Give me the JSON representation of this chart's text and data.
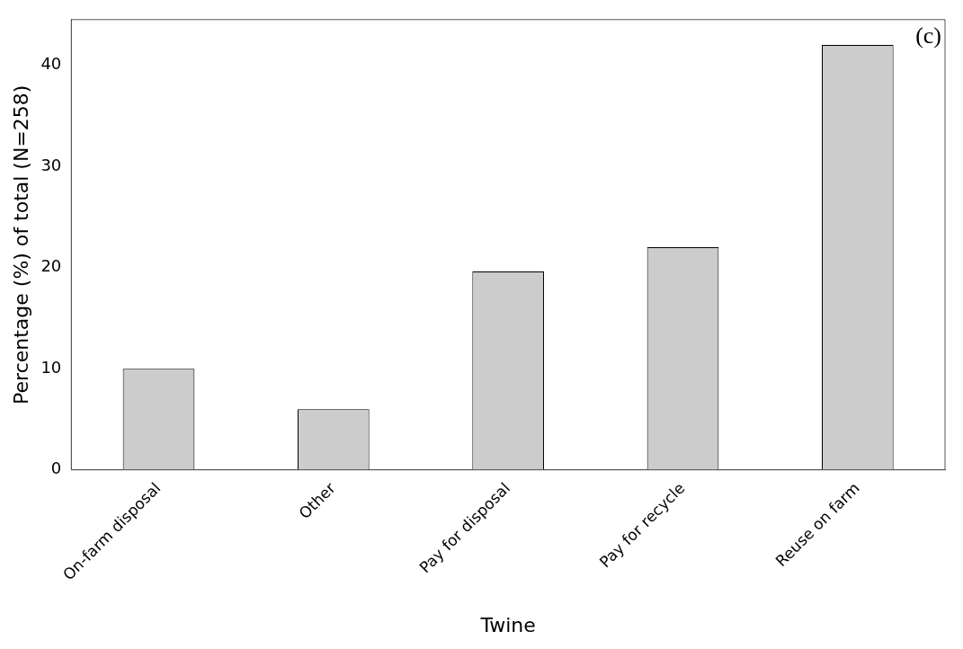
{
  "chart_data": {
    "type": "bar",
    "xlabel": "Twine",
    "ylabel": "Percentage (%) of total (N=258)",
    "categories": [
      "On-farm disposal",
      "Other",
      "Pay for disposal",
      "Pay for recycle",
      "Reuse on farm"
    ],
    "values": [
      10,
      6,
      19.6,
      22,
      42
    ],
    "color": "#cccccc",
    "ylim": [
      0,
      44.5
    ],
    "yticks": [
      0,
      10,
      20,
      30,
      40
    ],
    "grid": false,
    "legend": false,
    "annotations": [
      "(c)"
    ]
  }
}
